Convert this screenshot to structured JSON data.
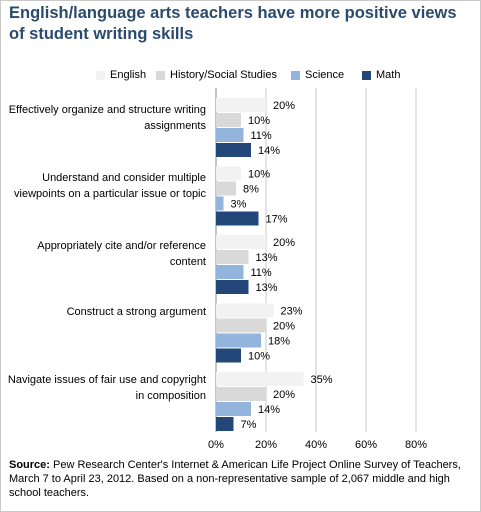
{
  "title": "English/language arts teachers have more positive views of student writing skills",
  "source_label": "Source:",
  "source_text": "Pew Research Center's Internet & American Life Project Online Survey of Teachers, March 7 to April 23, 2012.  Based on a non-representative sample of 2,067 middle and high school teachers.",
  "chart_data": {
    "type": "bar",
    "orientation": "horizontal",
    "categories": [
      "Effectively organize and structure writing assignments",
      "Understand and consider multiple viewpoints on a particular issue or topic",
      "Appropriately cite and/or reference content",
      "Construct a strong argument",
      "Navigate issues of fair use and copyright in composition"
    ],
    "series": [
      {
        "name": "English",
        "color": "#f2f2f2",
        "values": [
          20,
          10,
          20,
          23,
          35
        ],
        "labels": [
          "20%",
          "10%",
          "20%",
          "23%",
          "35%"
        ]
      },
      {
        "name": "History/Social Studies",
        "color": "#d9d9d9",
        "values": [
          10,
          8,
          13,
          20,
          20
        ],
        "labels": [
          "10%",
          "8%",
          "13%",
          "20%",
          "20%"
        ]
      },
      {
        "name": "Science",
        "color": "#93b4dc",
        "values": [
          11,
          3,
          11,
          18,
          14
        ],
        "labels": [
          "11%",
          "3%",
          "11%",
          "18%",
          "14%"
        ]
      },
      {
        "name": "Math",
        "color": "#24477a",
        "values": [
          14,
          17,
          13,
          10,
          7
        ],
        "labels": [
          "14%",
          "17%",
          "13%",
          "10%",
          "7%"
        ]
      }
    ],
    "xlim": [
      0,
      80
    ],
    "xticks": [
      "0%",
      "20%",
      "40%",
      "60%",
      "80%"
    ],
    "grid": true,
    "legend_position": "top"
  }
}
